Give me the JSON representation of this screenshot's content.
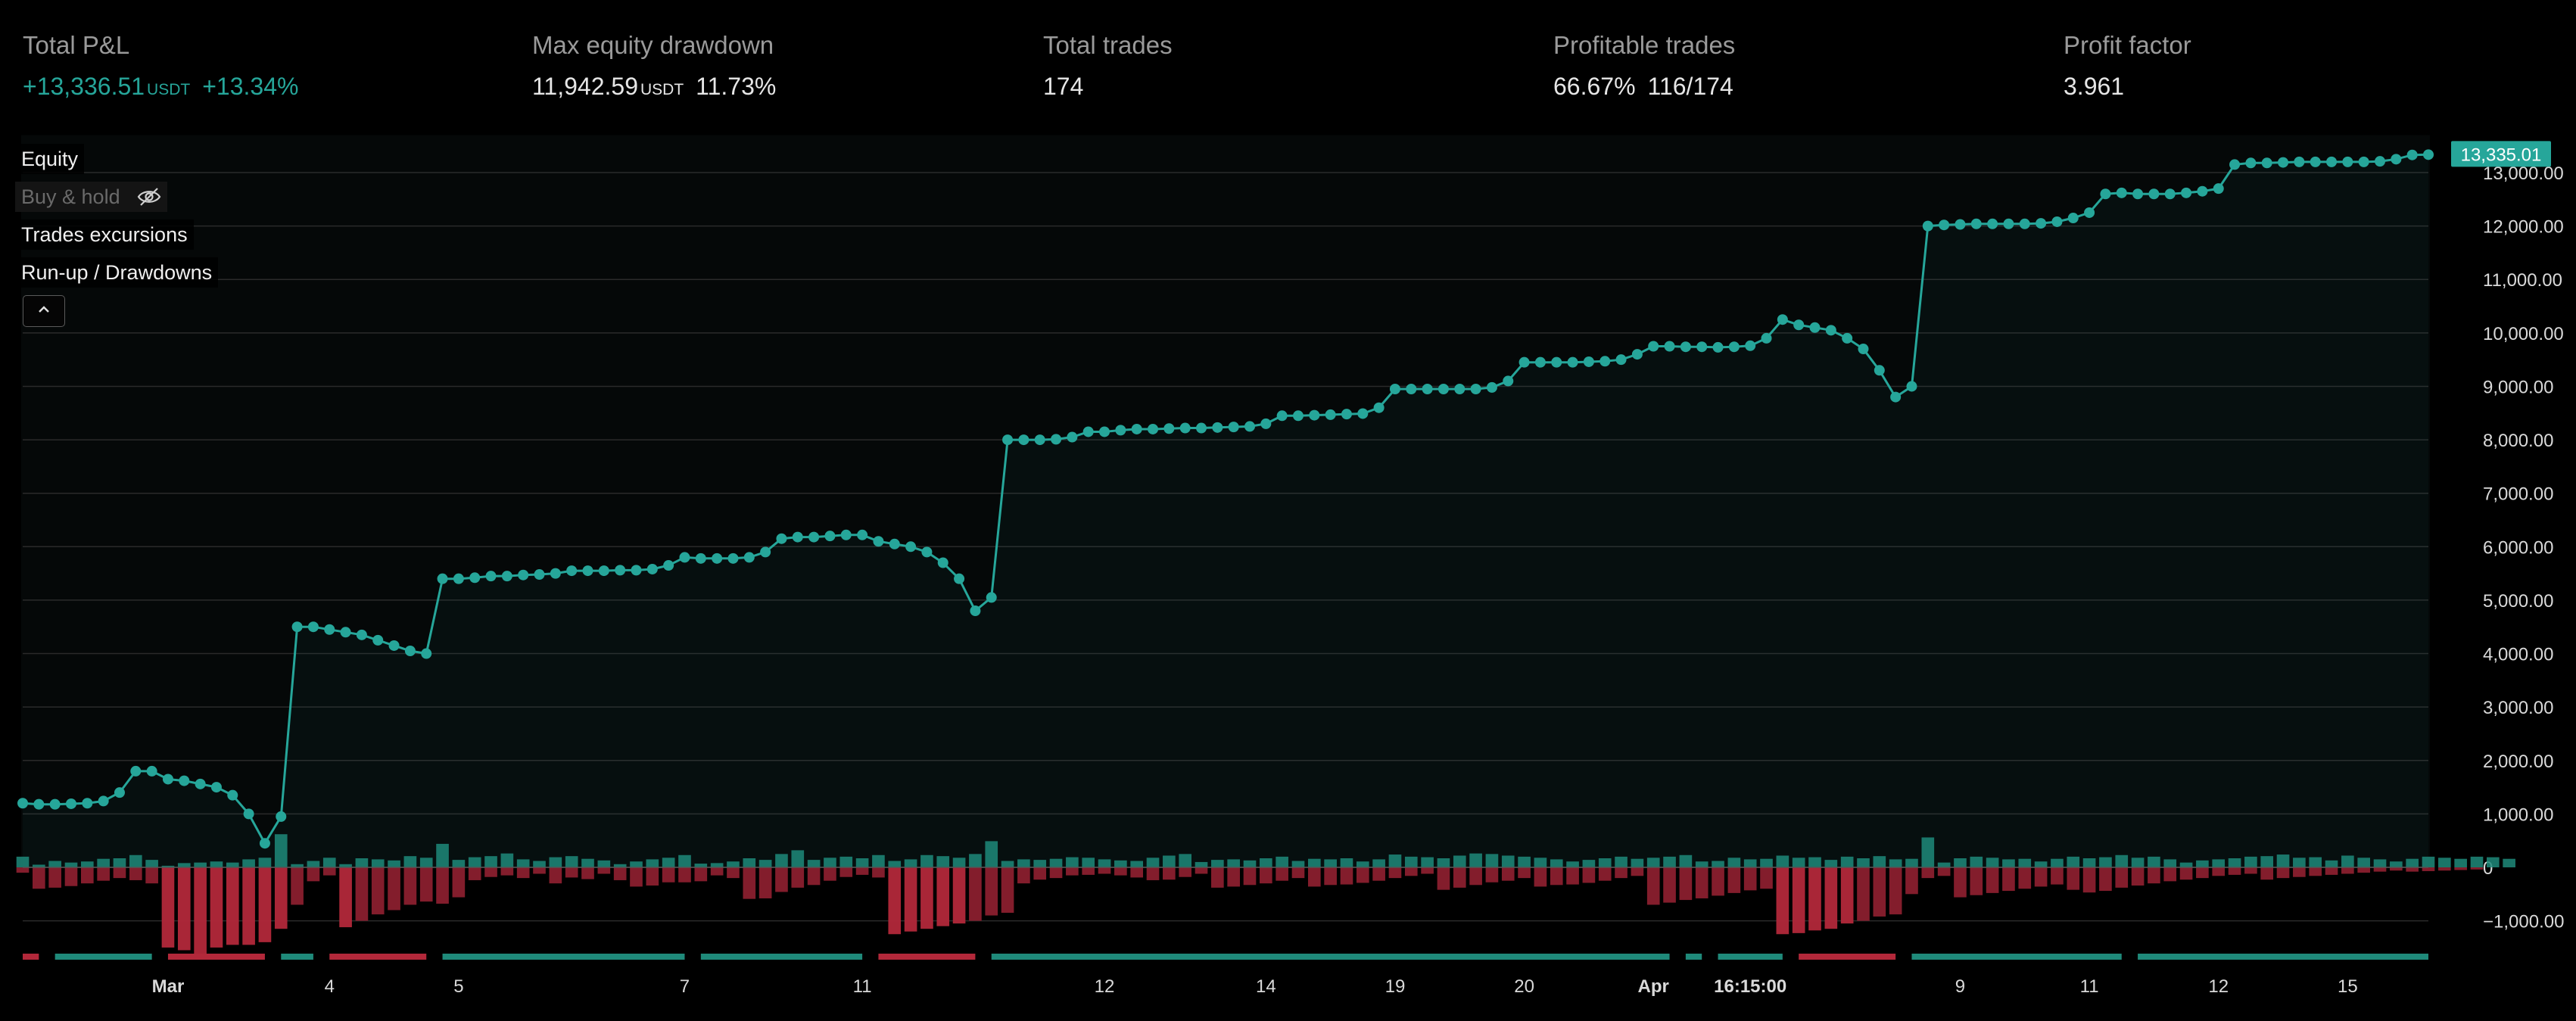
{
  "stats": {
    "total_pnl": {
      "label": "Total P&L",
      "value": "+13,336.51",
      "unit": "USDT",
      "percent": "+13.34%"
    },
    "max_drawdown": {
      "label": "Max equity drawdown",
      "value": "11,942.59",
      "unit": "USDT",
      "percent": "11.73%"
    },
    "total_trades": {
      "label": "Total trades",
      "value": "174"
    },
    "profitable_trades": {
      "label": "Profitable trades",
      "percent": "66.67%",
      "ratio": "116/174"
    },
    "profit_factor": {
      "label": "Profit factor",
      "value": "3.961"
    }
  },
  "legend": {
    "equity": "Equity",
    "buy_hold": "Buy & hold",
    "trades_excursions": "Trades excursions",
    "runup_drawdowns": "Run-up / Drawdowns"
  },
  "icons": {
    "buy_hold_toggle": "eye-off-icon",
    "collapse": "chevron-up-icon"
  },
  "colors": {
    "equity": "#26a69a",
    "runup": "#1f8a7a",
    "drawdown": "#b2283a",
    "drawdown_light": "#8a1f2e",
    "grid": "#2a2a2a",
    "axis_text": "#d9d9d9",
    "last_value_badge": "#26a69a"
  },
  "chart_data": {
    "type": "line",
    "ylim": [
      -1750,
      13700
    ],
    "y_ticks": [
      13000,
      12000,
      11000,
      10000,
      9000,
      8000,
      7000,
      6000,
      5000,
      4000,
      3000,
      2000,
      1000,
      0,
      -1000
    ],
    "y_tick_labels": [
      "13,000.00",
      "12,000.00",
      "11,000.00",
      "10,000.00",
      "9,000.00",
      "8,000.00",
      "7,000.00",
      "6,000.00",
      "5,000.00",
      "4,000.00",
      "3,000.00",
      "2,000.00",
      "1,000.00",
      "0",
      "−1,000.00"
    ],
    "x_ticks": [
      {
        "label": "Mar",
        "bold": true,
        "trade": 9
      },
      {
        "label": "4",
        "bold": false,
        "trade": 19
      },
      {
        "label": "5",
        "bold": false,
        "trade": 27
      },
      {
        "label": "7",
        "bold": false,
        "trade": 41
      },
      {
        "label": "11",
        "bold": false,
        "trade": 52
      },
      {
        "label": "12",
        "bold": false,
        "trade": 67
      },
      {
        "label": "14",
        "bold": false,
        "trade": 77
      },
      {
        "label": "19",
        "bold": false,
        "trade": 85
      },
      {
        "label": "20",
        "bold": false,
        "trade": 93
      },
      {
        "label": "Apr",
        "bold": true,
        "trade": 101
      },
      {
        "label": "16:15:00",
        "bold": true,
        "trade": 107
      },
      {
        "label": "9",
        "bold": false,
        "trade": 120
      },
      {
        "label": "11",
        "bold": false,
        "trade": 128
      },
      {
        "label": "12",
        "bold": false,
        "trade": 136
      },
      {
        "label": "15",
        "bold": false,
        "trade": 144
      }
    ],
    "last_value_label": "13,335.01",
    "series": [
      {
        "name": "Equity",
        "values": [
          1200,
          1180,
          1180,
          1190,
          1200,
          1240,
          1400,
          1800,
          1800,
          1650,
          1620,
          1560,
          1500,
          1350,
          1000,
          450,
          950,
          4500,
          4500,
          4450,
          4400,
          4350,
          4250,
          4150,
          4050,
          4000,
          5400,
          5400,
          5420,
          5450,
          5450,
          5470,
          5480,
          5500,
          5550,
          5550,
          5550,
          5560,
          5560,
          5580,
          5650,
          5800,
          5780,
          5780,
          5780,
          5800,
          5900,
          6150,
          6180,
          6180,
          6200,
          6220,
          6220,
          6100,
          6050,
          6000,
          5900,
          5700,
          5400,
          4800,
          5050,
          8000,
          8000,
          8000,
          8010,
          8050,
          8150,
          8150,
          8180,
          8200,
          8200,
          8210,
          8220,
          8220,
          8230,
          8240,
          8250,
          8300,
          8450,
          8450,
          8460,
          8470,
          8480,
          8490,
          8600,
          8950,
          8950,
          8950,
          8950,
          8950,
          8950,
          8980,
          9100,
          9450,
          9450,
          9450,
          9450,
          9460,
          9470,
          9500,
          9600,
          9750,
          9750,
          9740,
          9740,
          9730,
          9740,
          9760,
          9900,
          10250,
          10150,
          10100,
          10050,
          9900,
          9700,
          9300,
          8800,
          9000,
          12000,
          12020,
          12030,
          12040,
          12040,
          12040,
          12040,
          12050,
          12080,
          12150,
          12250,
          12600,
          12620,
          12600,
          12600,
          12600,
          12620,
          12650,
          12700,
          13150,
          13180,
          13180,
          13190,
          13200,
          13200,
          13200,
          13200,
          13200,
          13210,
          13250,
          13330,
          13335
        ]
      },
      {
        "name": "Run-up",
        "values": [
          200,
          50,
          120,
          90,
          110,
          160,
          170,
          230,
          140,
          30,
          80,
          90,
          110,
          90,
          150,
          180,
          620,
          60,
          120,
          180,
          60,
          170,
          150,
          130,
          210,
          180,
          440,
          140,
          190,
          210,
          260,
          150,
          120,
          190,
          210,
          160,
          130,
          60,
          110,
          150,
          180,
          230,
          70,
          80,
          110,
          170,
          140,
          250,
          320,
          140,
          180,
          200,
          170,
          230,
          120,
          150,
          230,
          210,
          180,
          250,
          490,
          120,
          150,
          140,
          160,
          190,
          180,
          150,
          130,
          120,
          180,
          220,
          250,
          100,
          140,
          150,
          130,
          170,
          200,
          120,
          160,
          150,
          170,
          110,
          150,
          240,
          200,
          190,
          170,
          220,
          260,
          250,
          220,
          200,
          180,
          150,
          110,
          140,
          170,
          200,
          160,
          180,
          200,
          230,
          110,
          120,
          180,
          150,
          160,
          220,
          180,
          190,
          140,
          200,
          170,
          210,
          150,
          160,
          560,
          90,
          170,
          200,
          180,
          150,
          160,
          110,
          160,
          200,
          170,
          190,
          230,
          180,
          200,
          150,
          90,
          130,
          150,
          170,
          200,
          210,
          240,
          180,
          190,
          130,
          220,
          180,
          150,
          110,
          160,
          200,
          180,
          160,
          200,
          190,
          160
        ]
      },
      {
        "name": "Drawdown",
        "values": [
          -100,
          -400,
          -380,
          -350,
          -300,
          -250,
          -200,
          -240,
          -300,
          -1500,
          -1550,
          -1650,
          -1500,
          -1450,
          -1450,
          -1400,
          -1150,
          -700,
          -260,
          -150,
          -1120,
          -1000,
          -880,
          -800,
          -700,
          -640,
          -680,
          -560,
          -240,
          -180,
          -150,
          -200,
          -120,
          -300,
          -190,
          -220,
          -120,
          -240,
          -360,
          -340,
          -280,
          -280,
          -260,
          -150,
          -200,
          -590,
          -580,
          -460,
          -380,
          -330,
          -250,
          -180,
          -140,
          -190,
          -1250,
          -1200,
          -1150,
          -1100,
          -1050,
          -1000,
          -900,
          -850,
          -300,
          -230,
          -200,
          -150,
          -140,
          -120,
          -150,
          -190,
          -240,
          -230,
          -180,
          -120,
          -380,
          -360,
          -330,
          -300,
          -250,
          -200,
          -360,
          -330,
          -320,
          -290,
          -250,
          -200,
          -160,
          -120,
          -420,
          -380,
          -330,
          -280,
          -250,
          -200,
          -360,
          -330,
          -320,
          -290,
          -250,
          -200,
          -160,
          -700,
          -660,
          -610,
          -580,
          -530,
          -480,
          -430,
          -400,
          -1250,
          -1230,
          -1180,
          -1150,
          -1050,
          -1000,
          -920,
          -880,
          -500,
          -200,
          -160,
          -560,
          -520,
          -480,
          -440,
          -400,
          -360,
          -320,
          -420,
          -470,
          -440,
          -380,
          -340,
          -300,
          -260,
          -230,
          -200,
          -160,
          -140,
          -120,
          -230,
          -200,
          -180,
          -160,
          -140,
          -120,
          -100,
          -80,
          -60,
          -80,
          -70,
          -60,
          -50,
          -40
        ]
      }
    ]
  }
}
